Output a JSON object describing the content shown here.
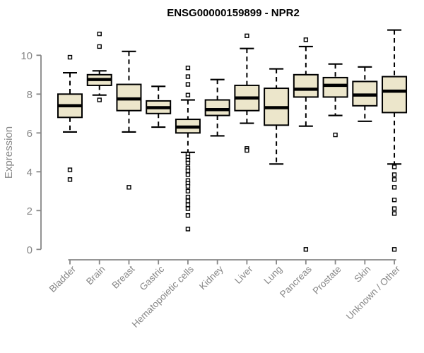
{
  "chart_data": {
    "type": "boxplot",
    "title": "ENSG00000159899 - NPR2",
    "xlabel": "",
    "ylabel": "Expression",
    "yticks": [
      0,
      2,
      4,
      6,
      8,
      10
    ],
    "ylim": [
      -0.6,
      11.6
    ],
    "grid": false,
    "legend": false,
    "categories": [
      "Bladder",
      "Brain",
      "Breast",
      "Gastric",
      "Hematopoietic cells",
      "Kidney",
      "Liver",
      "Lung",
      "Pancreas",
      "Prostate",
      "Skin",
      "Unknown / Other"
    ],
    "boxes": [
      {
        "category": "Bladder",
        "whisker_low": 6.05,
        "q1": 6.8,
        "median": 7.4,
        "q3": 8.0,
        "whisker_high": 9.1,
        "outliers": [
          9.9,
          4.1,
          3.6
        ]
      },
      {
        "category": "Brain",
        "whisker_low": 7.95,
        "q1": 8.45,
        "median": 8.75,
        "q3": 9.0,
        "whisker_high": 9.2,
        "outliers": [
          11.1,
          10.45,
          7.7
        ]
      },
      {
        "category": "Breast",
        "whisker_low": 6.05,
        "q1": 7.15,
        "median": 7.75,
        "q3": 8.5,
        "whisker_high": 10.2,
        "outliers": [
          3.2
        ]
      },
      {
        "category": "Gastric",
        "whisker_low": 6.3,
        "q1": 7.0,
        "median": 7.3,
        "q3": 7.65,
        "whisker_high": 8.4,
        "outliers": []
      },
      {
        "category": "Hematopoietic cells",
        "whisker_low": 5.0,
        "q1": 6.0,
        "median": 6.3,
        "q3": 6.7,
        "whisker_high": 7.7,
        "outliers": [
          9.35,
          8.9,
          8.5,
          7.95,
          4.9,
          4.75,
          4.6,
          4.45,
          4.2,
          4.05,
          3.85,
          3.55,
          3.4,
          3.25,
          3.0,
          2.7,
          2.5,
          2.3,
          2.1,
          1.75,
          1.05
        ]
      },
      {
        "category": "Kidney",
        "whisker_low": 5.85,
        "q1": 6.9,
        "median": 7.2,
        "q3": 7.7,
        "whisker_high": 8.75,
        "outliers": []
      },
      {
        "category": "Liver",
        "whisker_low": 6.5,
        "q1": 7.15,
        "median": 7.8,
        "q3": 8.45,
        "whisker_high": 10.35,
        "outliers": [
          11.0,
          5.2,
          5.1
        ]
      },
      {
        "category": "Lung",
        "whisker_low": 4.4,
        "q1": 6.4,
        "median": 7.3,
        "q3": 8.3,
        "whisker_high": 9.3,
        "outliers": []
      },
      {
        "category": "Pancreas",
        "whisker_low": 6.35,
        "q1": 7.85,
        "median": 8.25,
        "q3": 9.0,
        "whisker_high": 10.45,
        "outliers": [
          10.8,
          0
        ]
      },
      {
        "category": "Prostate",
        "whisker_low": 6.9,
        "q1": 7.85,
        "median": 8.45,
        "q3": 8.85,
        "whisker_high": 9.55,
        "outliers": [
          5.9
        ]
      },
      {
        "category": "Skin",
        "whisker_low": 6.6,
        "q1": 7.4,
        "median": 7.95,
        "q3": 8.65,
        "whisker_high": 9.4,
        "outliers": []
      },
      {
        "category": "Unknown / Other",
        "whisker_low": 4.4,
        "q1": 7.05,
        "median": 8.15,
        "q3": 8.9,
        "whisker_high": 11.3,
        "outliers": [
          4.25,
          3.85,
          3.6,
          3.2,
          2.55,
          2.1,
          1.85,
          0
        ]
      }
    ]
  },
  "colors": {
    "box_fill": "#ece6cb",
    "box_stroke": "#000000",
    "median": "#000000",
    "whisker": "#000000",
    "outlier_stroke": "#000000",
    "outlier_fill": "#ffffff",
    "axis": "#878787",
    "tick_label": "#878787",
    "title": "#000000"
  }
}
